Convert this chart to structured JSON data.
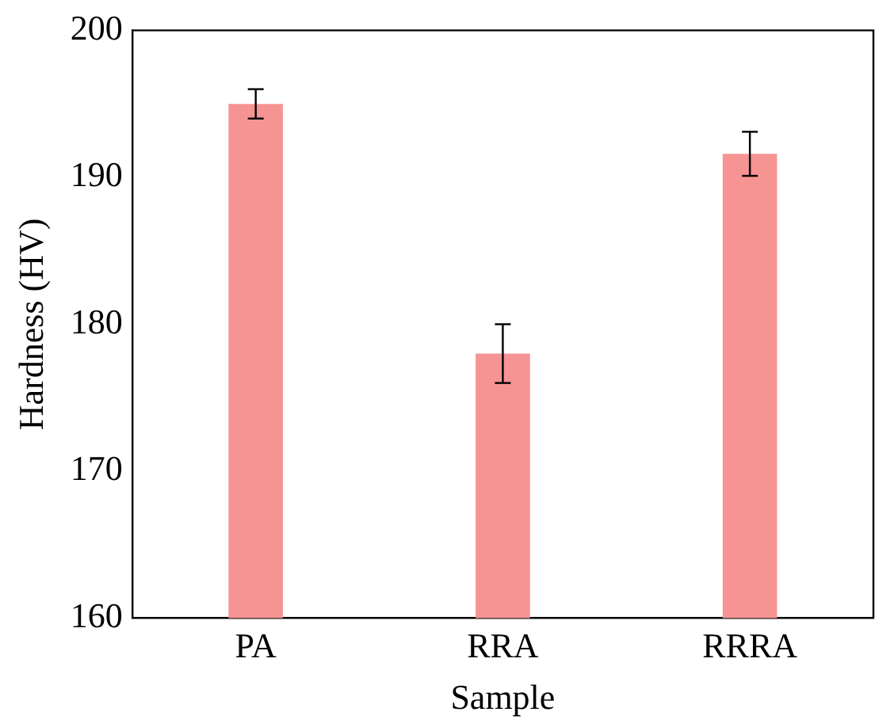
{
  "chart_data": {
    "type": "bar",
    "xlabel": "Sample",
    "ylabel": "Hardness (HV)",
    "categories": [
      "PA",
      "RRA",
      "RRRA"
    ],
    "values": [
      195,
      178,
      191.6
    ],
    "errors": [
      1,
      2,
      1.5
    ],
    "color": "#f69393",
    "ylim": [
      160,
      200
    ],
    "yticks": [
      160,
      170,
      180,
      190,
      200
    ],
    "grid": false,
    "legend": false
  }
}
